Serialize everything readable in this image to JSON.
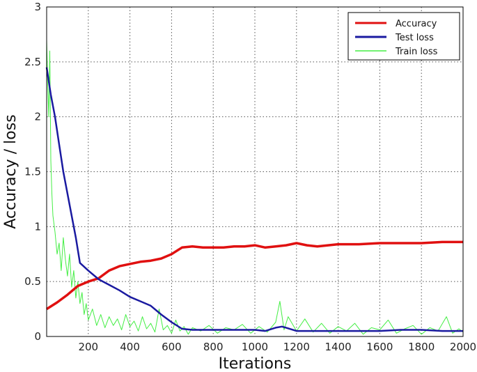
{
  "chart_data": {
    "type": "line",
    "title": "",
    "xlabel": "Iterations",
    "ylabel": "Accuracy / loss",
    "xlim": [
      0,
      2000
    ],
    "ylim": [
      0,
      3
    ],
    "grid": true,
    "legend_position": "top-right",
    "x_ticks": [
      "200",
      "400",
      "600",
      "800",
      "1000",
      "1200",
      "1400",
      "1600",
      "1800",
      "2000"
    ],
    "y_ticks": [
      "0",
      "0.5",
      "1",
      "1.5",
      "2",
      "2.5",
      "3"
    ],
    "series": [
      {
        "name": "Accuracy",
        "color": "#e01010",
        "x": [
          0,
          50,
          100,
          150,
          200,
          250,
          300,
          350,
          400,
          450,
          500,
          550,
          600,
          650,
          700,
          750,
          800,
          850,
          900,
          950,
          1000,
          1050,
          1100,
          1150,
          1200,
          1250,
          1300,
          1400,
          1500,
          1600,
          1700,
          1800,
          1900,
          2000
        ],
        "y": [
          0.25,
          0.31,
          0.38,
          0.46,
          0.5,
          0.53,
          0.6,
          0.64,
          0.66,
          0.68,
          0.69,
          0.71,
          0.75,
          0.81,
          0.82,
          0.81,
          0.81,
          0.81,
          0.82,
          0.82,
          0.83,
          0.81,
          0.82,
          0.83,
          0.85,
          0.83,
          0.82,
          0.84,
          0.84,
          0.85,
          0.85,
          0.85,
          0.86,
          0.86
        ]
      },
      {
        "name": "Test loss",
        "color": "#1a1aa0",
        "x": [
          0,
          20,
          40,
          60,
          80,
          100,
          120,
          140,
          160,
          200,
          250,
          300,
          350,
          400,
          450,
          500,
          550,
          600,
          650,
          700,
          800,
          900,
          1000,
          1050,
          1100,
          1130,
          1150,
          1200,
          1300,
          1400,
          1500,
          1600,
          1700,
          1800,
          1900,
          2000
        ],
        "y": [
          2.45,
          2.2,
          2.0,
          1.75,
          1.5,
          1.3,
          1.1,
          0.9,
          0.67,
          0.6,
          0.52,
          0.47,
          0.42,
          0.36,
          0.32,
          0.28,
          0.2,
          0.13,
          0.07,
          0.06,
          0.06,
          0.06,
          0.06,
          0.05,
          0.08,
          0.09,
          0.08,
          0.05,
          0.05,
          0.05,
          0.05,
          0.05,
          0.06,
          0.06,
          0.05,
          0.05
        ]
      },
      {
        "name": "Train loss",
        "color": "#44ee44",
        "x": [
          0,
          5,
          10,
          15,
          20,
          25,
          30,
          40,
          50,
          60,
          70,
          80,
          90,
          100,
          110,
          120,
          130,
          140,
          150,
          160,
          170,
          180,
          190,
          200,
          220,
          240,
          260,
          280,
          300,
          320,
          340,
          360,
          380,
          400,
          420,
          440,
          460,
          480,
          500,
          520,
          540,
          560,
          580,
          600,
          620,
          640,
          660,
          680,
          700,
          740,
          780,
          820,
          860,
          900,
          940,
          980,
          1020,
          1060,
          1100,
          1120,
          1140,
          1160,
          1200,
          1240,
          1280,
          1320,
          1360,
          1400,
          1440,
          1480,
          1520,
          1560,
          1600,
          1640,
          1680,
          1720,
          1760,
          1800,
          1840,
          1880,
          1920,
          1950,
          1980,
          2000
        ],
        "y": [
          2.7,
          2.3,
          2.0,
          2.6,
          1.6,
          1.3,
          1.1,
          0.95,
          0.75,
          0.85,
          0.6,
          0.9,
          0.7,
          0.55,
          0.75,
          0.45,
          0.6,
          0.35,
          0.5,
          0.3,
          0.4,
          0.2,
          0.3,
          0.15,
          0.25,
          0.1,
          0.2,
          0.08,
          0.18,
          0.1,
          0.16,
          0.06,
          0.2,
          0.09,
          0.14,
          0.05,
          0.18,
          0.07,
          0.12,
          0.04,
          0.25,
          0.06,
          0.1,
          0.03,
          0.15,
          0.05,
          0.09,
          0.02,
          0.08,
          0.05,
          0.1,
          0.03,
          0.08,
          0.06,
          0.11,
          0.03,
          0.09,
          0.04,
          0.13,
          0.32,
          0.06,
          0.18,
          0.05,
          0.16,
          0.04,
          0.12,
          0.03,
          0.09,
          0.05,
          0.12,
          0.02,
          0.08,
          0.06,
          0.15,
          0.03,
          0.07,
          0.1,
          0.02,
          0.08,
          0.05,
          0.18,
          0.03,
          0.07,
          0.04
        ]
      }
    ]
  }
}
